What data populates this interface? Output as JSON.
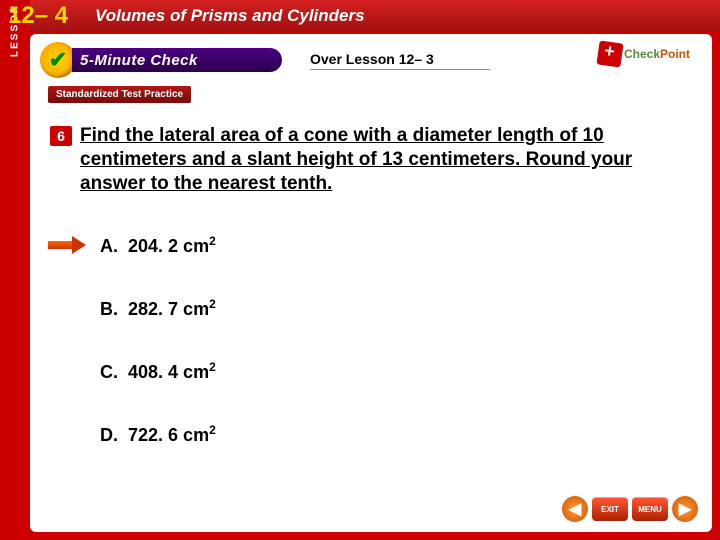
{
  "header": {
    "lesson_word": "LESSON",
    "lesson_num": "12– 4",
    "title": "Volumes of Prisms and Cylinders",
    "title_color": "#ffffff",
    "bg_gradient_top": "#d42020",
    "bg_gradient_bottom": "#a01010"
  },
  "check_bar": {
    "five_min_label": "5-Minute Check",
    "over_text": "Over Lesson 12– 3",
    "checkpoint_check": "Check",
    "checkpoint_point": "Point"
  },
  "stp_badge": "Standardized Test Practice",
  "question": {
    "number": "6",
    "text": "Find the lateral area of a cone with a diameter length of 10 centimeters and a slant height of 13 centimeters. Round your answer to the nearest tenth.",
    "fontsize": 19
  },
  "answers": [
    {
      "letter": "A.",
      "value": "204. 2 cm",
      "exp": "2",
      "selected": true
    },
    {
      "letter": "B.",
      "value": "282. 7 cm",
      "exp": "2",
      "selected": false
    },
    {
      "letter": "C.",
      "value": "408. 4 cm",
      "exp": "2",
      "selected": false
    },
    {
      "letter": "D.",
      "value": "722. 6 cm",
      "exp": "2",
      "selected": false
    }
  ],
  "nav": {
    "back": "◀",
    "exit": "EXIT",
    "menu": "MENU",
    "next": "▶"
  },
  "colors": {
    "page_bg": "#cc0000",
    "content_bg": "#ffffff",
    "accent_gold": "#ffd700",
    "arrow_orange": "#ff6600"
  }
}
